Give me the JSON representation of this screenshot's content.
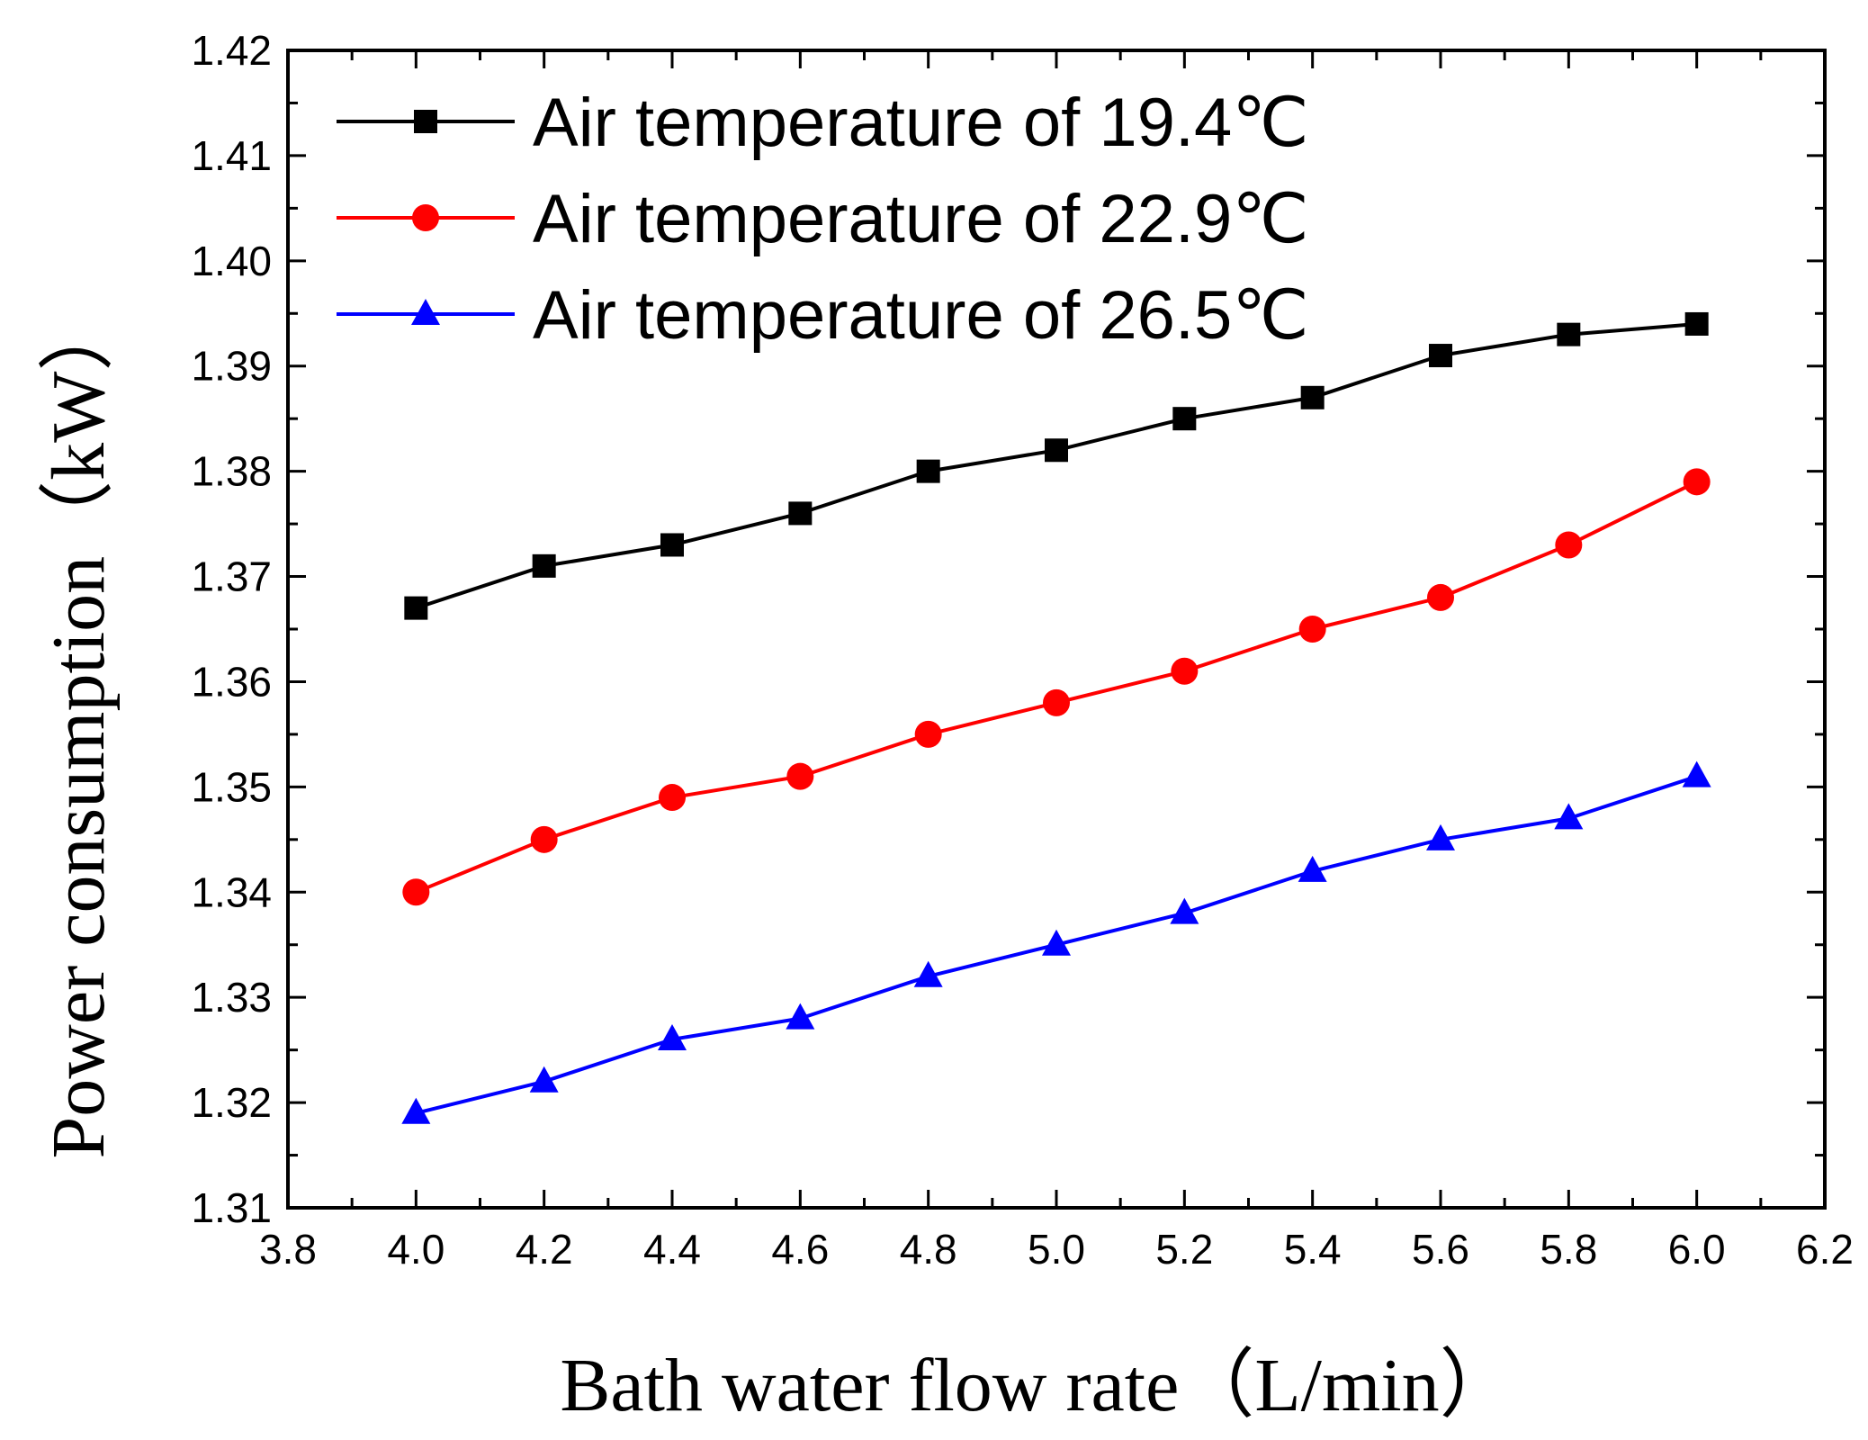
{
  "chart_data": {
    "type": "line",
    "title": "",
    "xlabel": "Bath water flow rate（L/min）",
    "ylabel": "Power consumption（kW）",
    "xlim": [
      3.8,
      6.2
    ],
    "ylim": [
      1.31,
      1.42
    ],
    "x_ticks": [
      "3.8",
      "4.0",
      "4.2",
      "4.4",
      "4.6",
      "4.8",
      "5.0",
      "5.2",
      "5.4",
      "5.6",
      "5.8",
      "6.0",
      "6.2"
    ],
    "y_ticks": [
      "1.31",
      "1.32",
      "1.33",
      "1.34",
      "1.35",
      "1.36",
      "1.37",
      "1.38",
      "1.39",
      "1.40",
      "1.41",
      "1.42"
    ],
    "grid": false,
    "legend_position": "top-left",
    "x": [
      4.0,
      4.2,
      4.4,
      4.6,
      4.8,
      5.0,
      5.2,
      5.4,
      5.6,
      5.8,
      6.0
    ],
    "series": [
      {
        "name": "Air temperature of 19.4℃",
        "color": "#000000",
        "marker": "square",
        "values": [
          1.367,
          1.371,
          1.373,
          1.376,
          1.38,
          1.382,
          1.385,
          1.387,
          1.391,
          1.393,
          1.394
        ]
      },
      {
        "name": "Air temperature of 22.9℃",
        "color": "#ff0000",
        "marker": "circle",
        "values": [
          1.34,
          1.345,
          1.349,
          1.351,
          1.355,
          1.358,
          1.361,
          1.365,
          1.368,
          1.373,
          1.379
        ]
      },
      {
        "name": "Air temperature of 26.5℃",
        "color": "#0000ff",
        "marker": "triangle",
        "values": [
          1.319,
          1.322,
          1.326,
          1.328,
          1.332,
          1.335,
          1.338,
          1.342,
          1.345,
          1.347,
          1.351
        ]
      }
    ]
  }
}
